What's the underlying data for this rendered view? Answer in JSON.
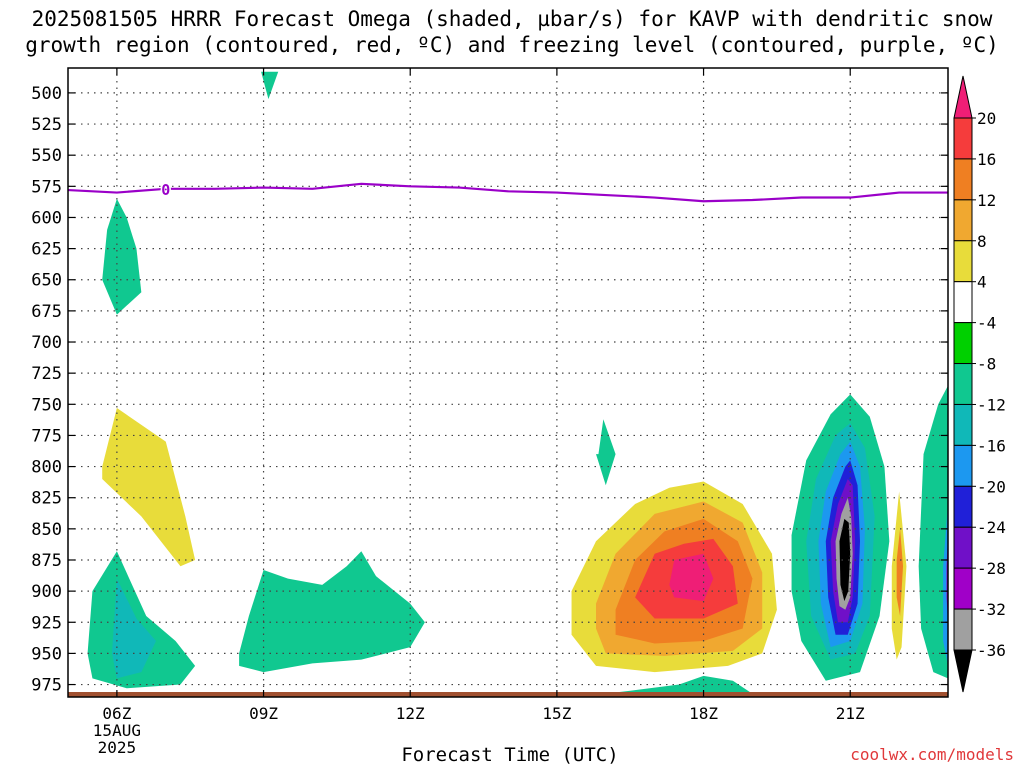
{
  "title": "2025081505 HRRR Forecast Omega (shaded, µbar/s) for KAVP with dendritic snow\ngrowth region (contoured, red, ºC) and freezing level (contoured, purple, ºC)",
  "xlabel": "Forecast Time (UTC)",
  "credit": "coolwx.com/models",
  "chart_data": {
    "type": "heatmap",
    "title": "2025081505 HRRR Forecast Omega (shaded, µbar/s) for KAVP with dendritic snow growth region (contoured, red, ºC) and freezing level (contoured, purple, ºC)",
    "xlabel": "Forecast Time (UTC)",
    "ylabel": "",
    "xlim": [
      5,
      23
    ],
    "ylim": [
      985,
      480
    ],
    "x_ticks": [
      {
        "x": 6,
        "label": "06Z"
      },
      {
        "x": 9,
        "label": "09Z"
      },
      {
        "x": 12,
        "label": "12Z"
      },
      {
        "x": 15,
        "label": "15Z"
      },
      {
        "x": 18,
        "label": "18Z"
      },
      {
        "x": 21,
        "label": "21Z"
      }
    ],
    "date_label": [
      "15AUG",
      "2025"
    ],
    "y_ticks": [
      500,
      525,
      550,
      575,
      600,
      625,
      650,
      675,
      700,
      725,
      750,
      775,
      800,
      825,
      850,
      875,
      900,
      925,
      950,
      975
    ],
    "grid": true,
    "colorbar": {
      "levels": [
        20,
        16,
        12,
        8,
        4,
        -4,
        -8,
        -12,
        -16,
        -20,
        -24,
        -28,
        -32,
        -36
      ],
      "colors": [
        "#ef1e76",
        "#f53c3c",
        "#ef7f22",
        "#f0a830",
        "#e8dc3a",
        "#ffffff",
        "#00d000",
        "#10c890",
        "#10b8b8",
        "#1c98f0",
        "#2020d8",
        "#7010c8",
        "#a000c8",
        "#a0a0a0",
        "#000000"
      ]
    },
    "freezing_level": {
      "color": "#9a00c8",
      "label": "0",
      "points": [
        [
          5,
          578
        ],
        [
          6,
          580
        ],
        [
          7,
          577
        ],
        [
          8,
          577
        ],
        [
          9,
          576
        ],
        [
          10,
          577
        ],
        [
          11,
          573
        ],
        [
          12,
          575
        ],
        [
          13,
          576
        ],
        [
          14,
          579
        ],
        [
          15,
          580
        ],
        [
          16,
          582
        ],
        [
          17,
          584
        ],
        [
          18,
          587
        ],
        [
          19,
          586
        ],
        [
          20,
          584
        ],
        [
          21,
          584
        ],
        [
          22,
          580
        ],
        [
          23,
          580
        ]
      ]
    },
    "omega_regions": [
      {
        "level": -8,
        "points": [
          [
            6.0,
            585
          ],
          [
            6.2,
            600
          ],
          [
            6.4,
            625
          ],
          [
            6.5,
            660
          ],
          [
            6.0,
            678
          ],
          [
            5.7,
            650
          ],
          [
            5.8,
            610
          ]
        ]
      },
      {
        "level": -8,
        "points": [
          [
            9.0,
            483
          ],
          [
            9.3,
            483
          ],
          [
            9.1,
            505
          ],
          [
            8.95,
            483
          ]
        ]
      },
      {
        "level": 4,
        "points": [
          [
            5.7,
            800
          ],
          [
            6.0,
            753
          ],
          [
            7.0,
            780
          ],
          [
            7.4,
            840
          ],
          [
            7.6,
            875
          ],
          [
            7.3,
            880
          ],
          [
            6.5,
            840
          ],
          [
            5.7,
            810
          ]
        ]
      },
      {
        "level": -8,
        "points": [
          [
            5.5,
            900
          ],
          [
            6.0,
            868
          ],
          [
            6.6,
            920
          ],
          [
            7.2,
            940
          ],
          [
            7.6,
            960
          ],
          [
            7.3,
            975
          ],
          [
            6.2,
            978
          ],
          [
            5.5,
            970
          ],
          [
            5.4,
            950
          ]
        ]
      },
      {
        "level": -12,
        "points": [
          [
            5.9,
            950
          ],
          [
            6.0,
            890
          ],
          [
            6.4,
            922
          ],
          [
            6.8,
            940
          ],
          [
            6.5,
            965
          ],
          [
            6.0,
            970
          ]
        ]
      },
      {
        "level": -8,
        "points": [
          [
            8.5,
            950
          ],
          [
            8.7,
            920
          ],
          [
            9.0,
            883
          ],
          [
            9.5,
            890
          ],
          [
            10.2,
            895
          ],
          [
            10.7,
            880
          ],
          [
            11.0,
            868
          ],
          [
            11.3,
            888
          ],
          [
            12.0,
            910
          ],
          [
            12.3,
            925
          ],
          [
            12.0,
            945
          ],
          [
            11.0,
            955
          ],
          [
            10.0,
            958
          ],
          [
            9.0,
            965
          ],
          [
            8.5,
            960
          ]
        ]
      },
      {
        "level": -8,
        "points": [
          [
            15.85,
            790
          ],
          [
            15.95,
            762
          ],
          [
            16.2,
            790
          ],
          [
            16.0,
            815
          ],
          [
            15.8,
            790
          ]
        ]
      },
      {
        "level": 4,
        "points": [
          [
            15.3,
            900
          ],
          [
            15.8,
            860
          ],
          [
            16.6,
            830
          ],
          [
            17.3,
            817
          ],
          [
            18.0,
            812
          ],
          [
            18.8,
            830
          ],
          [
            19.4,
            870
          ],
          [
            19.5,
            915
          ],
          [
            19.2,
            950
          ],
          [
            18.5,
            960
          ],
          [
            17.0,
            965
          ],
          [
            15.8,
            960
          ],
          [
            15.3,
            935
          ]
        ]
      },
      {
        "level": 8,
        "points": [
          [
            15.8,
            910
          ],
          [
            16.2,
            870
          ],
          [
            17.0,
            838
          ],
          [
            18.0,
            828
          ],
          [
            18.8,
            845
          ],
          [
            19.2,
            885
          ],
          [
            19.2,
            930
          ],
          [
            18.6,
            948
          ],
          [
            17.2,
            952
          ],
          [
            16.0,
            950
          ],
          [
            15.8,
            930
          ]
        ]
      },
      {
        "level": 12,
        "points": [
          [
            16.2,
            915
          ],
          [
            16.6,
            875
          ],
          [
            17.2,
            852
          ],
          [
            18.0,
            842
          ],
          [
            18.7,
            860
          ],
          [
            19.0,
            890
          ],
          [
            18.8,
            930
          ],
          [
            18.0,
            940
          ],
          [
            17.0,
            942
          ],
          [
            16.2,
            935
          ]
        ]
      },
      {
        "level": 16,
        "points": [
          [
            16.6,
            905
          ],
          [
            17.0,
            870
          ],
          [
            17.6,
            862
          ],
          [
            18.2,
            858
          ],
          [
            18.6,
            880
          ],
          [
            18.7,
            910
          ],
          [
            18.0,
            922
          ],
          [
            17.0,
            922
          ]
        ]
      },
      {
        "level": 20,
        "points": [
          [
            17.3,
            895
          ],
          [
            17.4,
            875
          ],
          [
            18.0,
            870
          ],
          [
            18.2,
            890
          ],
          [
            18.0,
            908
          ],
          [
            17.4,
            905
          ]
        ]
      },
      {
        "level": -8,
        "points": [
          [
            15.4,
            985
          ],
          [
            16.5,
            980
          ],
          [
            17.5,
            975
          ],
          [
            18.0,
            968
          ],
          [
            18.6,
            972
          ],
          [
            19.1,
            985
          ]
        ]
      },
      {
        "level": -12,
        "points": [
          [
            17.6,
            985
          ],
          [
            17.9,
            980
          ],
          [
            18.2,
            985
          ]
        ]
      },
      {
        "level": -8,
        "points": [
          [
            19.8,
            855
          ],
          [
            20.1,
            795
          ],
          [
            20.6,
            758
          ],
          [
            21.0,
            742
          ],
          [
            21.4,
            760
          ],
          [
            21.7,
            800
          ],
          [
            21.8,
            860
          ],
          [
            21.6,
            920
          ],
          [
            21.2,
            965
          ],
          [
            20.5,
            972
          ],
          [
            20.0,
            940
          ],
          [
            19.8,
            900
          ]
        ]
      },
      {
        "level": -12,
        "points": [
          [
            20.1,
            860
          ],
          [
            20.3,
            810
          ],
          [
            20.7,
            775
          ],
          [
            21.0,
            765
          ],
          [
            21.3,
            785
          ],
          [
            21.5,
            840
          ],
          [
            21.4,
            920
          ],
          [
            21.1,
            950
          ],
          [
            20.6,
            955
          ],
          [
            20.2,
            920
          ]
        ]
      },
      {
        "level": -16,
        "points": [
          [
            20.35,
            860
          ],
          [
            20.5,
            820
          ],
          [
            20.8,
            790
          ],
          [
            21.0,
            780
          ],
          [
            21.2,
            800
          ],
          [
            21.3,
            850
          ],
          [
            21.25,
            910
          ],
          [
            21.0,
            940
          ],
          [
            20.6,
            945
          ],
          [
            20.4,
            910
          ]
        ]
      },
      {
        "level": -20,
        "points": [
          [
            20.5,
            860
          ],
          [
            20.65,
            825
          ],
          [
            20.9,
            800
          ],
          [
            21.0,
            795
          ],
          [
            21.15,
            815
          ],
          [
            21.2,
            860
          ],
          [
            21.15,
            910
          ],
          [
            20.95,
            935
          ],
          [
            20.7,
            935
          ],
          [
            20.55,
            905
          ]
        ]
      },
      {
        "level": -24,
        "points": [
          [
            20.6,
            860
          ],
          [
            20.75,
            830
          ],
          [
            20.95,
            810
          ],
          [
            21.05,
            815
          ],
          [
            21.1,
            860
          ],
          [
            21.05,
            905
          ],
          [
            20.95,
            925
          ],
          [
            20.75,
            925
          ],
          [
            20.65,
            900
          ]
        ]
      },
      {
        "level": -32,
        "points": [
          [
            20.7,
            860
          ],
          [
            20.82,
            838
          ],
          [
            20.95,
            825
          ],
          [
            21.02,
            840
          ],
          [
            21.05,
            870
          ],
          [
            21.0,
            905
          ],
          [
            20.9,
            915
          ],
          [
            20.78,
            912
          ],
          [
            20.72,
            890
          ]
        ]
      },
      {
        "level": -36,
        "points": [
          [
            20.78,
            860
          ],
          [
            20.88,
            842
          ],
          [
            20.97,
            845
          ],
          [
            21.0,
            870
          ],
          [
            20.96,
            900
          ],
          [
            20.88,
            908
          ],
          [
            20.8,
            895
          ]
        ]
      },
      {
        "level": 4,
        "points": [
          [
            21.85,
            880
          ],
          [
            22.0,
            820
          ],
          [
            22.15,
            880
          ],
          [
            22.05,
            945
          ],
          [
            21.95,
            955
          ],
          [
            21.85,
            930
          ]
        ]
      },
      {
        "level": 12,
        "points": [
          [
            21.95,
            875
          ],
          [
            22.02,
            850
          ],
          [
            22.08,
            880
          ],
          [
            22.02,
            920
          ],
          [
            21.95,
            905
          ]
        ]
      },
      {
        "level": -8,
        "points": [
          [
            22.4,
            880
          ],
          [
            22.5,
            790
          ],
          [
            22.8,
            750
          ],
          [
            23.0,
            735
          ],
          [
            23.0,
            970
          ],
          [
            22.7,
            965
          ],
          [
            22.45,
            930
          ]
        ]
      },
      {
        "level": -16,
        "points": [
          [
            22.9,
            880
          ],
          [
            23.0,
            830
          ],
          [
            23.0,
            960
          ],
          [
            22.9,
            940
          ]
        ]
      },
      {
        "level": -28,
        "points": [
          [
            22.97,
            880
          ],
          [
            23.0,
            855
          ],
          [
            23.0,
            925
          ],
          [
            22.97,
            905
          ]
        ]
      }
    ],
    "terrain": {
      "color": "#a05030",
      "surface_pressure": 985
    }
  }
}
